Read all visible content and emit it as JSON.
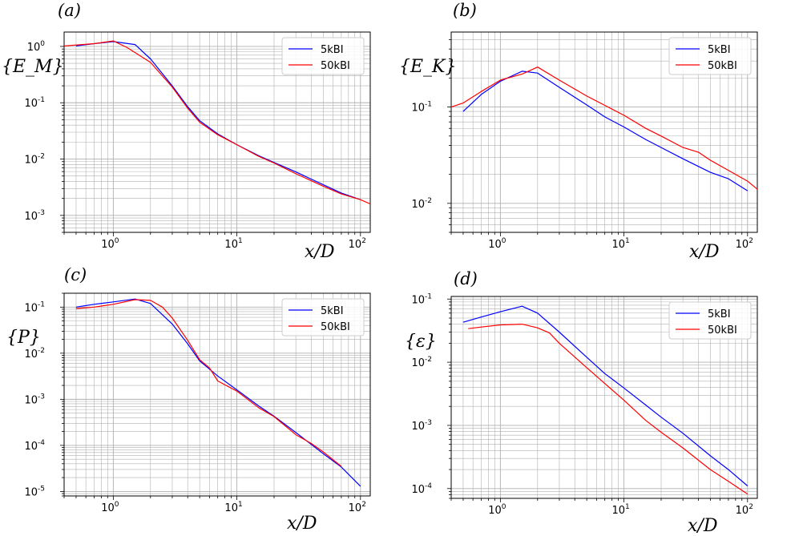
{
  "figure": {
    "legend_labels": [
      "5kBI",
      "50kBI"
    ],
    "colors": {
      "series_5kBI": "#0000ff",
      "series_50kBI": "#ff0000",
      "grid": "#b0b0b0"
    }
  },
  "chart_data": [
    {
      "id": "a",
      "panel_label": "(a)",
      "type": "line",
      "xscale": "log",
      "yscale": "log",
      "xlim": [
        0.4,
        120
      ],
      "ylim": [
        0.0005,
        1.8
      ],
      "ylabel": "{E_M}",
      "xlabel": "x/D",
      "xticks": [
        {
          "base": "10",
          "exp": "0"
        },
        {
          "base": "10",
          "exp": "1"
        },
        {
          "base": "10",
          "exp": "2"
        }
      ],
      "yticks": [
        {
          "base": "10",
          "exp": "0"
        },
        {
          "base": "10",
          "exp": "-1"
        },
        {
          "base": "10",
          "exp": "-2"
        },
        {
          "base": "10",
          "exp": "-3"
        }
      ],
      "legend_position": "top-right",
      "series": [
        {
          "name": "5kBI",
          "x": [
            0.5,
            0.7,
            1.0,
            1.5,
            2.0,
            3.0,
            4.0,
            5.0,
            7.0,
            10,
            15,
            20,
            30,
            50,
            70,
            100
          ],
          "y": [
            1.02,
            1.12,
            1.22,
            1.08,
            0.6,
            0.2,
            0.085,
            0.048,
            0.028,
            0.018,
            0.0115,
            0.0087,
            0.0059,
            0.0035,
            0.0025,
            0.0019
          ]
        },
        {
          "name": "50kBI",
          "x": [
            0.4,
            0.7,
            1.0,
            1.3,
            2.0,
            3.0,
            4.0,
            5.0,
            7.0,
            10,
            15,
            20,
            30,
            50,
            70,
            100,
            120
          ],
          "y": [
            1.02,
            1.12,
            1.25,
            0.95,
            0.52,
            0.19,
            0.08,
            0.045,
            0.027,
            0.018,
            0.0112,
            0.0085,
            0.0055,
            0.0033,
            0.0024,
            0.0019,
            0.0016
          ]
        }
      ]
    },
    {
      "id": "b",
      "panel_label": "(b)",
      "type": "line",
      "xscale": "log",
      "yscale": "log",
      "xlim": [
        0.4,
        120
      ],
      "ylim": [
        0.005,
        0.6
      ],
      "ylabel": "{E_K}",
      "xlabel": "x/D",
      "xticks": [
        {
          "base": "10",
          "exp": "0"
        },
        {
          "base": "10",
          "exp": "1"
        },
        {
          "base": "10",
          "exp": "2"
        }
      ],
      "yticks": [
        {
          "base": "10",
          "exp": "-1"
        },
        {
          "base": "10",
          "exp": "-2"
        }
      ],
      "legend_position": "top-right",
      "series": [
        {
          "name": "5kBI",
          "x": [
            0.5,
            0.7,
            1.0,
            1.5,
            2.0,
            3.0,
            5.0,
            7.0,
            10,
            15,
            20,
            30,
            50,
            70,
            100
          ],
          "y": [
            0.09,
            0.135,
            0.185,
            0.235,
            0.225,
            0.16,
            0.105,
            0.079,
            0.062,
            0.046,
            0.038,
            0.029,
            0.021,
            0.018,
            0.0135
          ]
        },
        {
          "name": "50kBI",
          "x": [
            0.4,
            0.5,
            0.7,
            1.0,
            1.5,
            2.0,
            3.0,
            5.0,
            7.0,
            10,
            15,
            20,
            30,
            40,
            50,
            70,
            100,
            120
          ],
          "y": [
            0.1,
            0.11,
            0.145,
            0.19,
            0.22,
            0.26,
            0.19,
            0.13,
            0.104,
            0.082,
            0.06,
            0.05,
            0.038,
            0.034,
            0.028,
            0.022,
            0.017,
            0.014
          ]
        }
      ]
    },
    {
      "id": "c",
      "panel_label": "(c)",
      "type": "line",
      "xscale": "log",
      "yscale": "log",
      "xlim": [
        0.4,
        120
      ],
      "ylim": [
        8e-06,
        0.2
      ],
      "ylabel": "{P}",
      "xlabel": "x/D",
      "xticks": [
        {
          "base": "10",
          "exp": "0"
        },
        {
          "base": "10",
          "exp": "1"
        },
        {
          "base": "10",
          "exp": "2"
        }
      ],
      "yticks": [
        {
          "base": "10",
          "exp": "-1"
        },
        {
          "base": "10",
          "exp": "-2"
        },
        {
          "base": "10",
          "exp": "-3"
        },
        {
          "base": "10",
          "exp": "-4"
        },
        {
          "base": "10",
          "exp": "-5"
        }
      ],
      "legend_position": "top-right",
      "series": [
        {
          "name": "5kBI",
          "x": [
            0.5,
            0.7,
            1.0,
            1.5,
            2.0,
            3.0,
            4.0,
            5.0,
            7.0,
            10,
            15,
            20,
            30,
            50,
            70,
            100
          ],
          "y": [
            0.1,
            0.115,
            0.13,
            0.15,
            0.12,
            0.043,
            0.016,
            0.0068,
            0.0032,
            0.0016,
            0.00072,
            0.00043,
            0.00019,
            6.6e-05,
            3.4e-05,
            1.3e-05
          ]
        },
        {
          "name": "50kBI",
          "x": [
            0.5,
            0.7,
            1.0,
            1.5,
            2.0,
            2.5,
            3.0,
            4.0,
            5.0,
            6.0,
            7.0,
            10,
            15,
            20,
            30,
            40,
            50,
            70
          ],
          "y": [
            0.093,
            0.1,
            0.115,
            0.145,
            0.14,
            0.1,
            0.058,
            0.019,
            0.0072,
            0.0048,
            0.0025,
            0.0015,
            0.00066,
            0.00042,
            0.00017,
            0.00011,
            7.2e-05,
            3.5e-05
          ]
        }
      ]
    },
    {
      "id": "d",
      "panel_label": "(d)",
      "type": "line",
      "xscale": "log",
      "yscale": "log",
      "xlim": [
        0.4,
        120
      ],
      "ylim": [
        7e-05,
        0.11
      ],
      "ylabel": "{ε}",
      "xlabel": "x/D",
      "xticks": [
        {
          "base": "10",
          "exp": "0"
        },
        {
          "base": "10",
          "exp": "1"
        },
        {
          "base": "10",
          "exp": "2"
        }
      ],
      "yticks": [
        {
          "base": "10",
          "exp": "-1"
        },
        {
          "base": "10",
          "exp": "-2"
        },
        {
          "base": "10",
          "exp": "-3"
        },
        {
          "base": "10",
          "exp": "-4"
        }
      ],
      "legend_position": "top-right",
      "series": [
        {
          "name": "5kBI",
          "x": [
            0.5,
            0.7,
            1.0,
            1.5,
            2.0,
            3.0,
            5.0,
            7.0,
            10,
            15,
            20,
            30,
            50,
            70,
            100
          ],
          "y": [
            0.043,
            0.052,
            0.063,
            0.077,
            0.06,
            0.03,
            0.012,
            0.0066,
            0.0039,
            0.0021,
            0.00135,
            0.00075,
            0.00033,
            0.0002,
            0.00011
          ]
        },
        {
          "name": "50kBI",
          "x": [
            0.55,
            0.7,
            1.0,
            1.5,
            2.0,
            2.5,
            3.0,
            5.0,
            7.0,
            10,
            15,
            20,
            30,
            50,
            70,
            100
          ],
          "y": [
            0.034,
            0.036,
            0.039,
            0.04,
            0.035,
            0.029,
            0.02,
            0.0082,
            0.0046,
            0.0025,
            0.0012,
            0.00078,
            0.00044,
            0.0002,
            0.00013,
            8.2e-05
          ]
        }
      ]
    }
  ]
}
